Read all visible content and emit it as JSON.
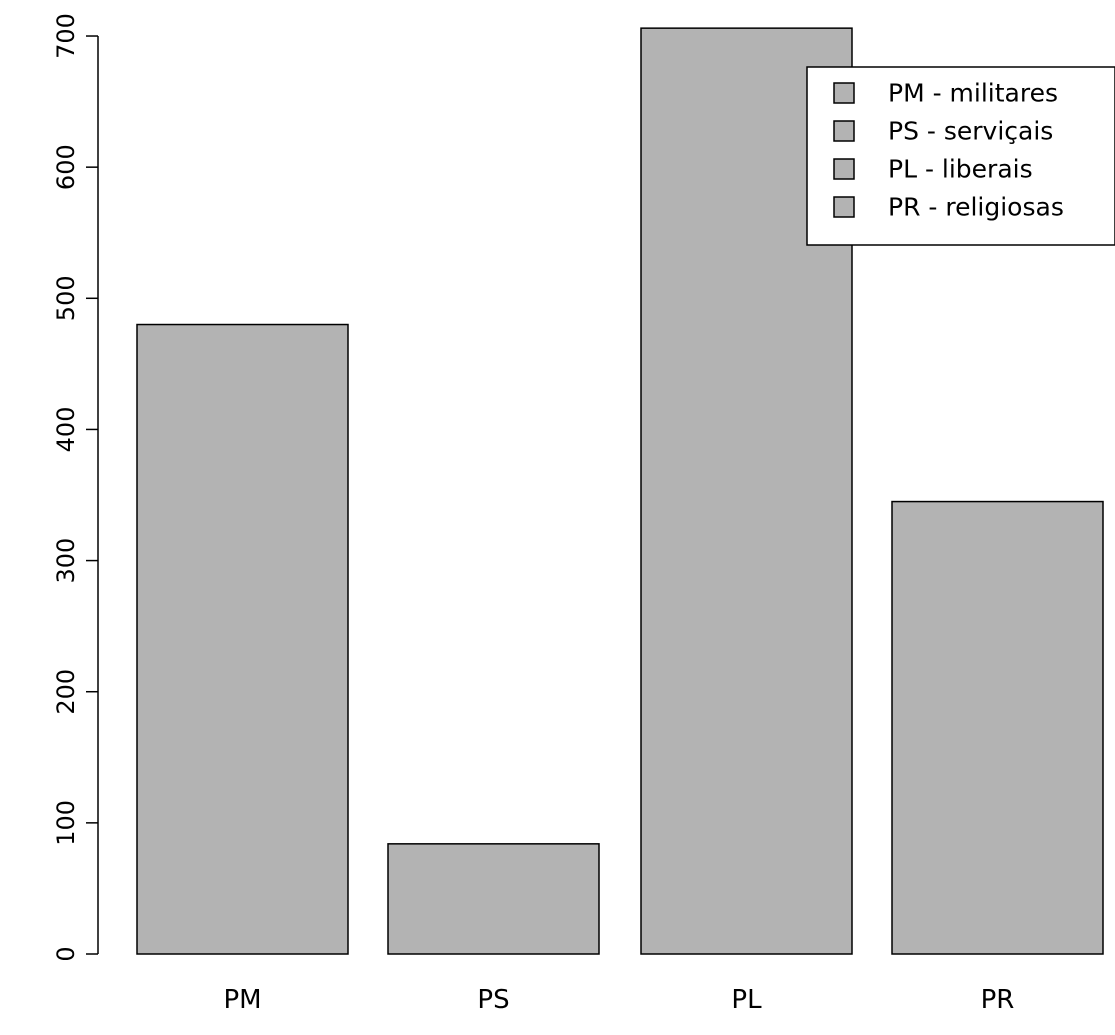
{
  "chart_data": {
    "type": "bar",
    "categories": [
      "PM",
      "PS",
      "PL",
      "PR"
    ],
    "values": [
      480,
      84,
      706,
      345
    ],
    "title": "",
    "xlabel": "",
    "ylabel": "",
    "ylim": [
      0,
      700
    ],
    "yticks": [
      0,
      100,
      200,
      300,
      400,
      500,
      600,
      700
    ],
    "ytick_labels": [
      "0",
      "100",
      "200",
      "300",
      "400",
      "500",
      "600",
      "700"
    ],
    "grid": false,
    "legend": {
      "placement": "top-right",
      "entries": [
        "PM - militares",
        "PS - serviçais",
        "PL - liberais",
        "PR - religiosas"
      ]
    },
    "colors": {
      "bar_fill": "#b3b3b3",
      "bar_stroke": "#000000"
    }
  }
}
